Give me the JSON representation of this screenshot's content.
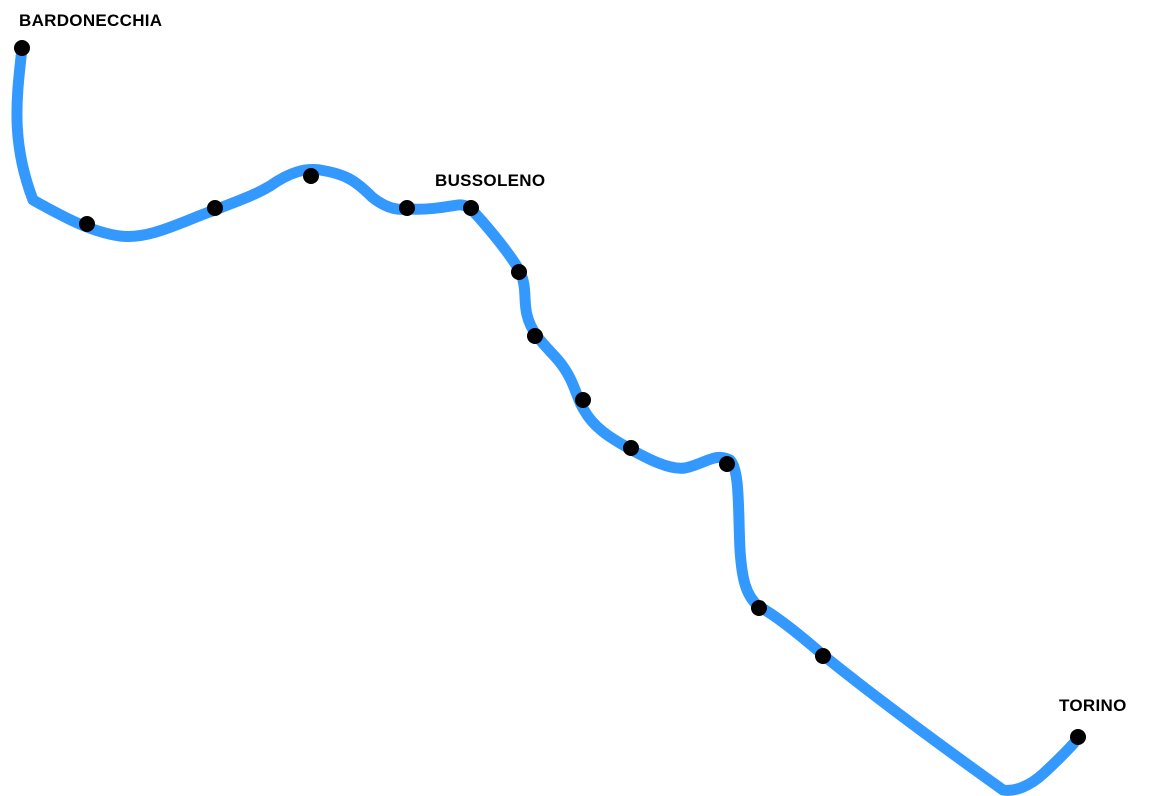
{
  "map": {
    "line_color": "#3399ff",
    "stop_color": "#000000",
    "stations": [
      {
        "id": "bardonecchia",
        "label": "BARDONECCHIA"
      },
      {
        "id": "bussoleno",
        "label": "BUSSOLENO"
      },
      {
        "id": "torino",
        "label": "TORINO"
      }
    ],
    "intermediate_stop_count": 13
  }
}
